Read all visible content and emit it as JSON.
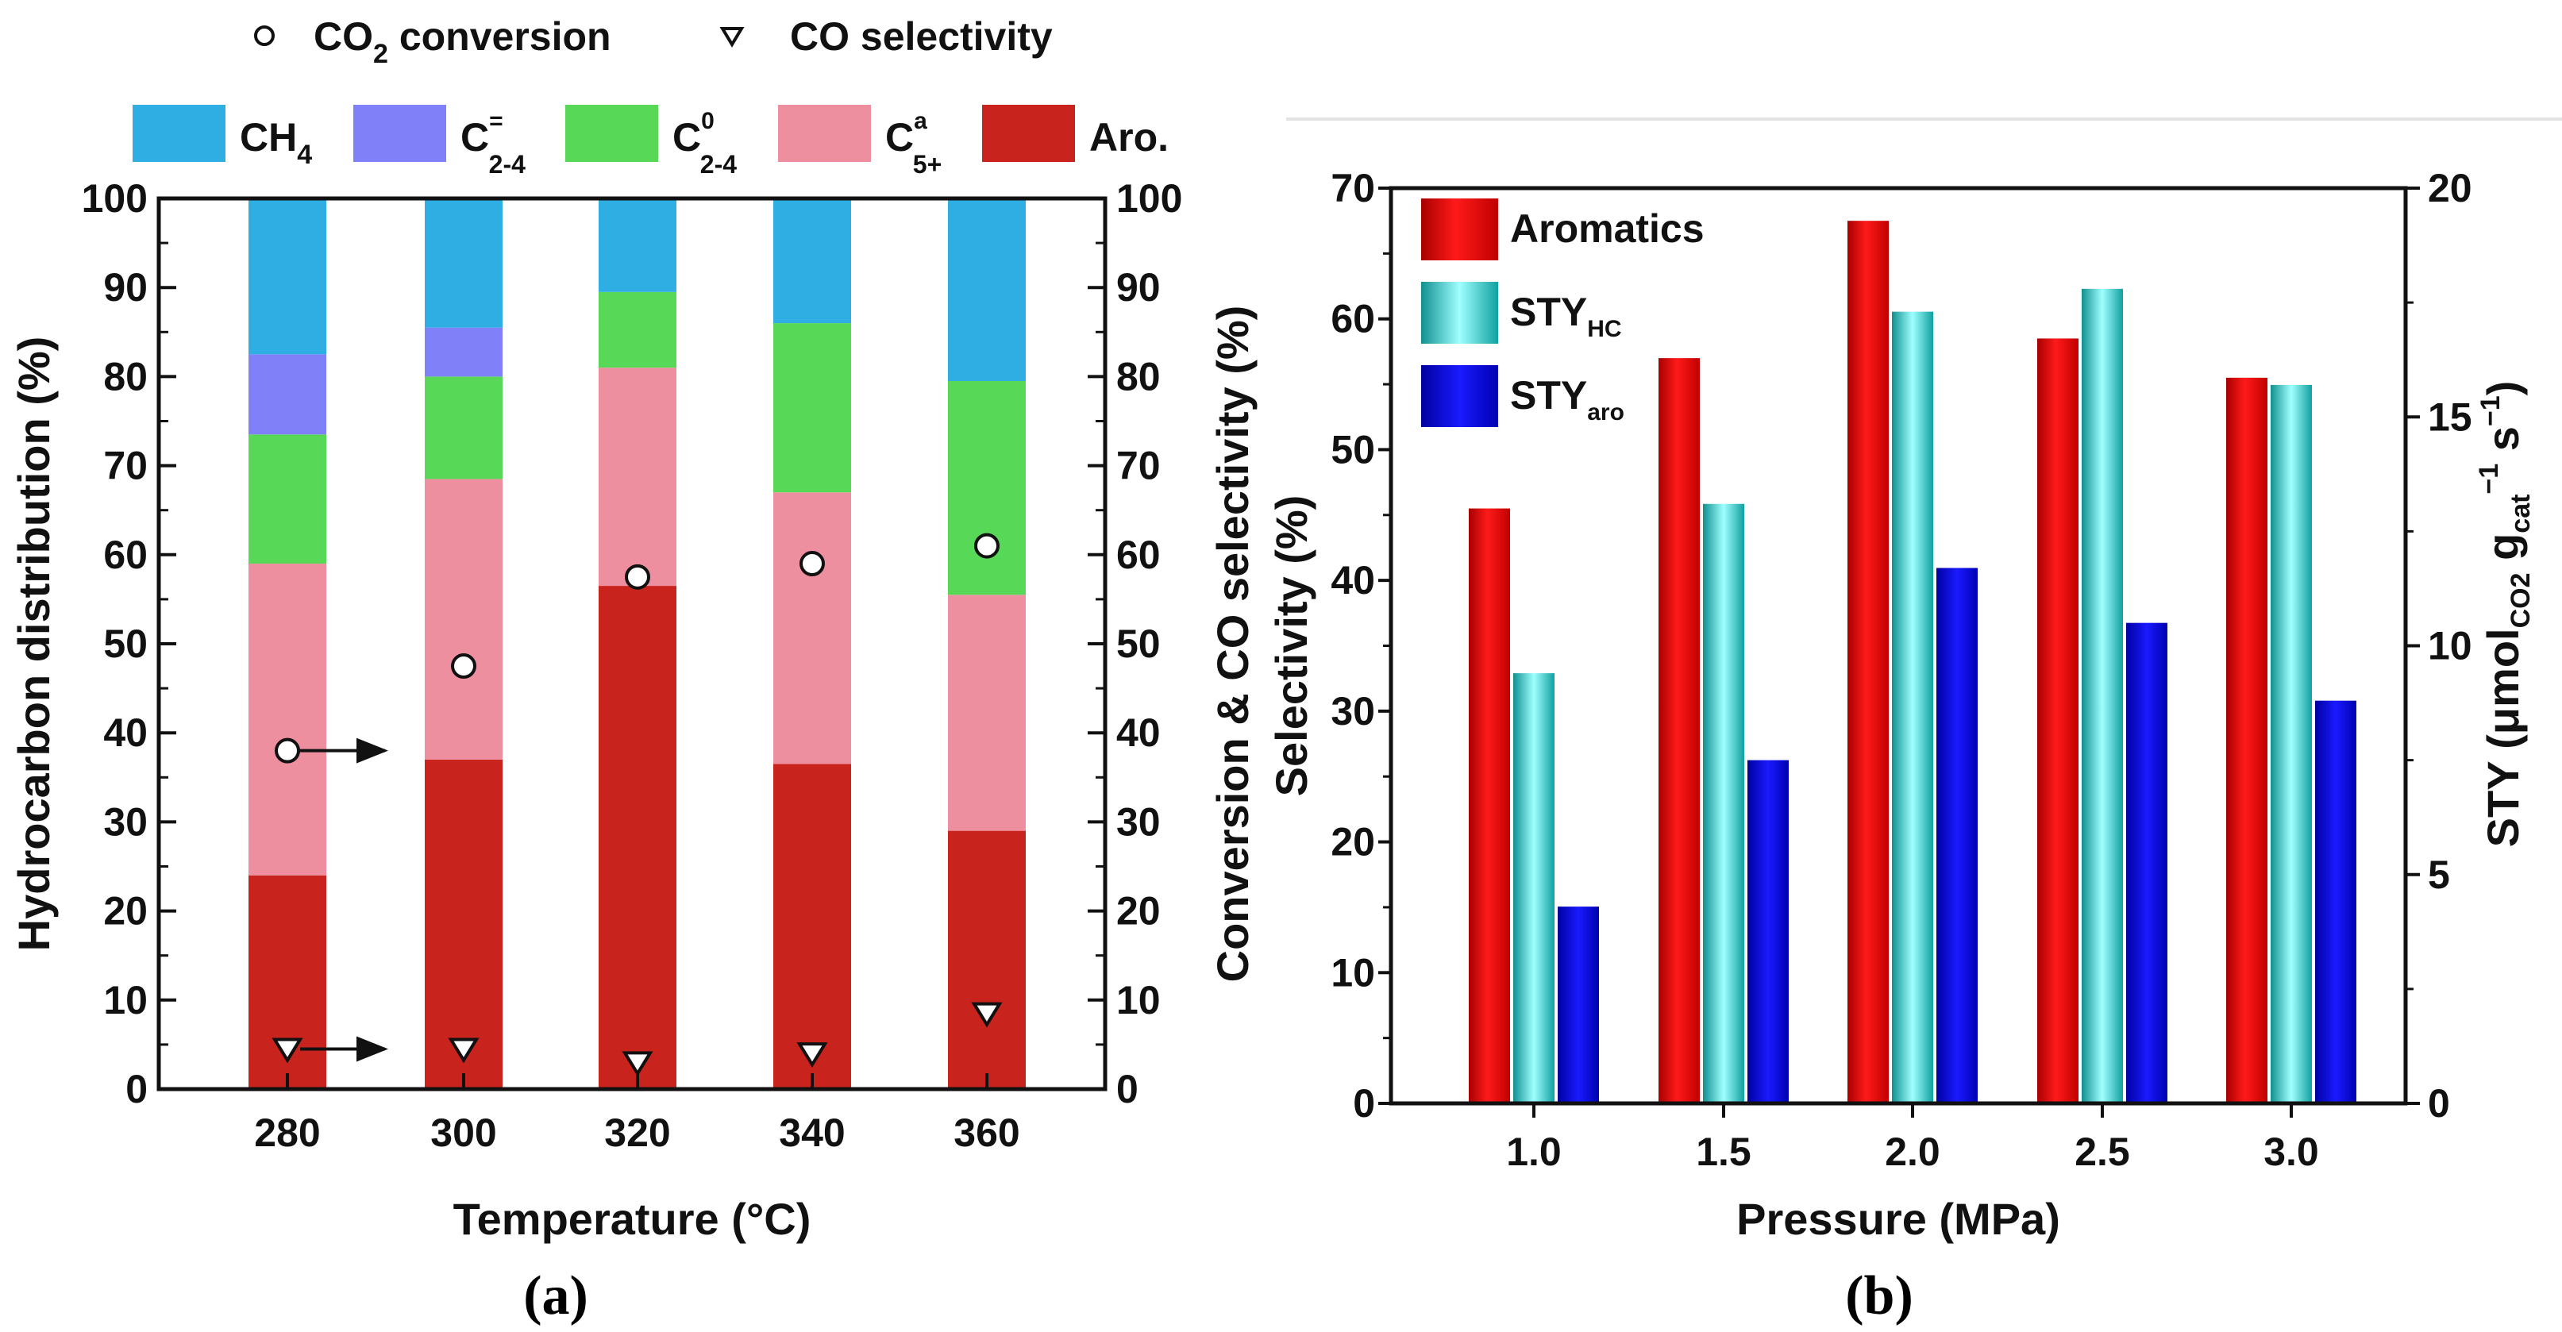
{
  "chart_data": [
    {
      "type": "bar",
      "stacked": true,
      "panel_label": "(a)",
      "xlabel": "Temperature (°C)",
      "ylabel": "Hydrocarbon distribution (%)",
      "ylabel_right": "Conversion & CO selectivity (%)",
      "categories": [
        "280",
        "300",
        "320",
        "340",
        "360"
      ],
      "ylim": [
        0,
        100
      ],
      "ylim_right": [
        0,
        100
      ],
      "yticks": [
        0,
        10,
        20,
        30,
        40,
        50,
        60,
        70,
        80,
        90,
        100
      ],
      "series": [
        {
          "name": "Aro.",
          "label": {
            "base": "Aro.",
            "sup": "",
            "sub": ""
          },
          "color": "#c8231d",
          "values": [
            24,
            37,
            56.5,
            36.5,
            29
          ]
        },
        {
          "name": "C5+a",
          "label": {
            "base": "C",
            "sup": "a",
            "sub": "5+"
          },
          "color": "#ee8fa0",
          "values": [
            35,
            31.5,
            24.5,
            30.5,
            26.5
          ]
        },
        {
          "name": "C2-4 0",
          "label": {
            "base": "C",
            "sup": "0",
            "sub": "2-4"
          },
          "color": "#57d957",
          "values": [
            14.5,
            11.5,
            8.5,
            19,
            24
          ]
        },
        {
          "name": "C2-4 =",
          "label": {
            "base": "C",
            "sup": "=",
            "sub": "2-4"
          },
          "color": "#8080f8",
          "values": [
            9,
            5.5,
            0,
            0,
            0
          ]
        },
        {
          "name": "CH4",
          "label": {
            "base": "CH",
            "sup": "",
            "sub": "4"
          },
          "color": "#2eaee3",
          "values": [
            17.5,
            14.5,
            10.5,
            14,
            20.5
          ]
        }
      ],
      "legend_order": [
        "CH4",
        "C2-4 =",
        "C2-4 0",
        "C5+a",
        "Aro."
      ],
      "markers": [
        {
          "name": "CO2 conversion",
          "label": {
            "base": "CO",
            "sub": "2",
            "rest": " conversion"
          },
          "symbol": "circle",
          "axis": "right",
          "values": [
            38,
            47.5,
            57.5,
            59,
            61
          ]
        },
        {
          "name": "CO selectivity",
          "label": {
            "base": "CO selectivity",
            "sub": "",
            "rest": ""
          },
          "symbol": "triangle-down",
          "axis": "right",
          "values": [
            4.5,
            4.5,
            3,
            4,
            8.5
          ]
        }
      ],
      "annotations": [
        "arrow to right axis from CO2 conversion at 280",
        "arrow to right axis from CO selectivity at 280"
      ],
      "legend_position": "top"
    },
    {
      "type": "bar",
      "grouped": true,
      "panel_label": "(b)",
      "xlabel": "Pressure (MPa)",
      "ylabel": "Selectivity (%)",
      "ylabel_right": {
        "base": "STY (μmol",
        "sub1": "CO2",
        "mid": " g",
        "sub2": "cat",
        "sup2": "−1",
        "end": " s",
        "sup3": "−1",
        "close": ")"
      },
      "categories": [
        "1.0",
        "1.5",
        "2.0",
        "2.5",
        "3.0"
      ],
      "ylim": [
        0,
        70
      ],
      "ylim_right": [
        0,
        20
      ],
      "yticks": [
        0,
        10,
        20,
        30,
        40,
        50,
        60,
        70
      ],
      "yticks_right": [
        0,
        5,
        10,
        15,
        20
      ],
      "series": [
        {
          "name": "Aromatics",
          "label": {
            "base": "Aromatics",
            "sub": ""
          },
          "axis": "left",
          "color": "#ff0000",
          "values": [
            45.5,
            57,
            67.5,
            58.5,
            55.5
          ]
        },
        {
          "name": "STY_HC",
          "label": {
            "base": "STY",
            "sub": "HC"
          },
          "axis": "right",
          "color": "#00e5e5",
          "values": [
            9.4,
            13.1,
            17.3,
            17.8,
            15.7
          ]
        },
        {
          "name": "STY_aro",
          "label": {
            "base": "STY",
            "sub": "aro"
          },
          "axis": "right",
          "color": "#0000ee",
          "values": [
            4.3,
            7.5,
            11.7,
            10.5,
            8.8
          ]
        }
      ],
      "legend_position": "top-left"
    }
  ]
}
